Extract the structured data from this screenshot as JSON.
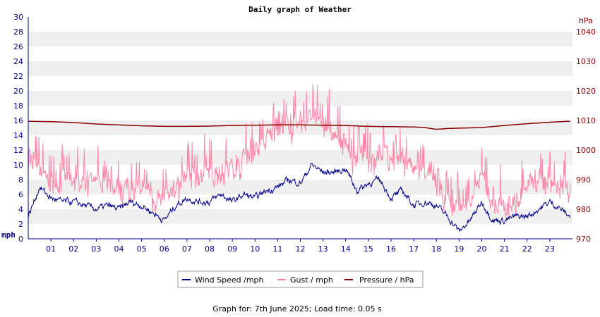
{
  "chart_data": {
    "type": "line",
    "title": "Daily graph of Weather",
    "left_axis": {
      "unit": "mph",
      "min": 0,
      "max": 30,
      "step": 2
    },
    "right_axis": {
      "unit": "hPa",
      "min": 970,
      "max": 1045,
      "ticks": [
        970,
        980,
        990,
        1000,
        1010,
        1020,
        1030,
        1040
      ]
    },
    "x_axis": {
      "unit": "hour",
      "min": 0,
      "max": 24,
      "ticks": [
        "01",
        "02",
        "03",
        "04",
        "05",
        "06",
        "07",
        "08",
        "09",
        "10",
        "11",
        "12",
        "13",
        "14",
        "15",
        "16",
        "17",
        "18",
        "19",
        "20",
        "21",
        "22",
        "23"
      ]
    },
    "grid": "horizontal bands every 2 mph",
    "series": [
      {
        "name": "Wind Speed /mph",
        "axis": "left",
        "color": "#00008b",
        "x": [
          0,
          0.5,
          1,
          1.5,
          2,
          2.5,
          3,
          3.5,
          4,
          4.5,
          5,
          5.5,
          6,
          6.5,
          7,
          7.5,
          8,
          8.5,
          9,
          9.5,
          10,
          10.5,
          11,
          11.5,
          12,
          12.5,
          13,
          13.5,
          14,
          14.5,
          15,
          15.5,
          16,
          16.5,
          17,
          17.5,
          18,
          18.5,
          19,
          19.5,
          20,
          20.5,
          21,
          21.5,
          22,
          22.5,
          23,
          23.5,
          23.9
        ],
        "values": [
          3,
          7,
          5.5,
          5,
          5,
          4.5,
          4,
          4.5,
          4,
          5,
          4.5,
          3.5,
          2.5,
          4.5,
          5.5,
          5,
          5,
          6,
          5,
          6,
          5.5,
          6.5,
          7,
          8,
          7.5,
          10,
          9,
          9,
          9.5,
          6.5,
          7.5,
          8,
          5.5,
          6.5,
          4.5,
          5,
          4.5,
          3,
          1,
          2.5,
          5,
          2.5,
          2.5,
          3,
          3,
          4,
          5,
          4,
          3
        ]
      },
      {
        "name": "Gust / mph",
        "axis": "left",
        "color": "#ff85a8",
        "x": [
          0,
          0.5,
          1,
          1.5,
          2,
          2.5,
          3,
          3.5,
          4,
          4.5,
          5,
          5.5,
          6,
          6.5,
          7,
          7.5,
          8,
          8.5,
          9,
          9.5,
          10,
          10.5,
          11,
          11.5,
          12,
          12.5,
          13,
          13.5,
          14,
          14.5,
          15,
          15.5,
          16,
          16.5,
          17,
          17.5,
          18,
          18.5,
          19,
          19.5,
          20,
          20.5,
          21,
          21.5,
          22,
          22.5,
          23,
          23.5,
          23.9
        ],
        "values": [
          10,
          9.5,
          8,
          7.5,
          8,
          7.5,
          7,
          7.5,
          7,
          7,
          6.5,
          6,
          5.5,
          7,
          8,
          8,
          8.5,
          9,
          9.5,
          11,
          12,
          13.5,
          15,
          15,
          16,
          16.5,
          15,
          14,
          13,
          11,
          11,
          12,
          10,
          11,
          9,
          9,
          7,
          4.5,
          4,
          5,
          8.5,
          4,
          4.5,
          5,
          7,
          8,
          8,
          7,
          6
        ]
      },
      {
        "name": "Pressure / hPa",
        "axis": "right",
        "color": "#8b0000",
        "x": [
          0,
          1,
          2,
          3,
          4,
          5,
          6,
          7,
          8,
          9,
          10,
          11,
          12,
          13,
          14,
          15,
          16,
          17,
          17.5,
          18,
          18.5,
          19,
          20,
          21,
          22,
          23,
          24
        ],
        "values": [
          1009.7,
          1009.6,
          1009.3,
          1008.8,
          1008.5,
          1008.2,
          1008,
          1008,
          1008.1,
          1008.3,
          1008.4,
          1008.5,
          1008.5,
          1008.4,
          1008.3,
          1008,
          1007.9,
          1007.8,
          1007.6,
          1007,
          1007.3,
          1007.4,
          1007.6,
          1008.3,
          1008.9,
          1009.4,
          1009.8
        ]
      }
    ],
    "legend": {
      "placement": "bottom-center"
    }
  },
  "footer": "Graph for: 7th June 2025; Load time: 0.05 s"
}
